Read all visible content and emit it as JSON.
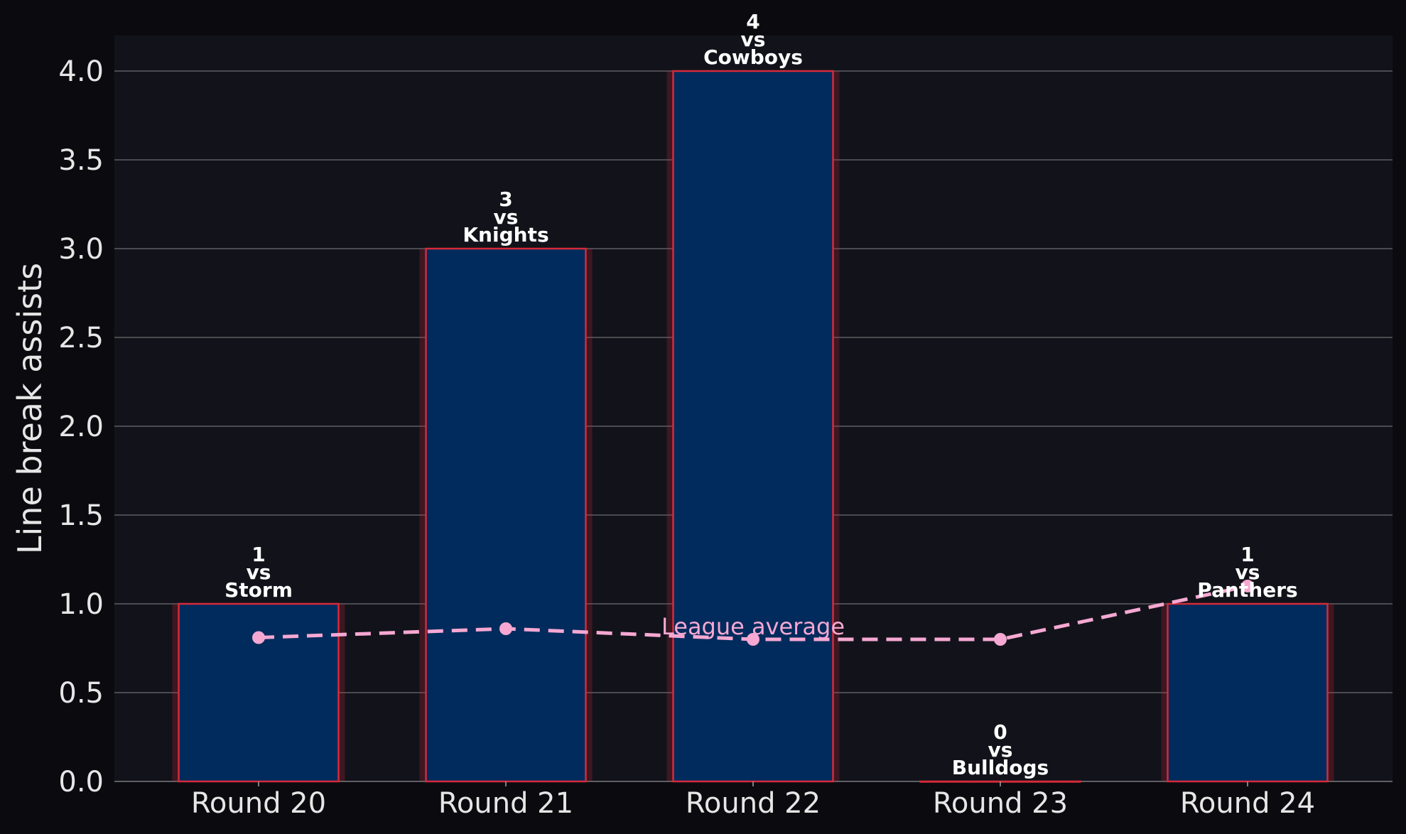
{
  "chart_data": {
    "type": "bar",
    "categories": [
      "Round 20",
      "Round 21",
      "Round 22",
      "Round 23",
      "Round 24"
    ],
    "values": [
      1,
      3,
      4,
      0,
      1
    ],
    "opponents": [
      "Storm",
      "Knights",
      "Cowboys",
      "Bulldogs",
      "Panthers"
    ],
    "vs_word": "vs",
    "ylabel": "Line break assists",
    "ylim": [
      0,
      4.2
    ],
    "yticks": [
      "0.0",
      "0.5",
      "1.0",
      "1.5",
      "2.0",
      "2.5",
      "3.0",
      "3.5",
      "4.0"
    ],
    "grid": true,
    "overlay_line": {
      "label": "League average",
      "values": [
        0.81,
        0.86,
        0.8,
        0.8,
        1.1
      ],
      "style": "dashed",
      "color": "#f6a8d2"
    },
    "colors": {
      "bar_fill": "#002b5c",
      "bar_edge": "#d62a3a",
      "background": "#0b0b0f",
      "plot_background": "#12131a",
      "grid": "#5c5c63",
      "text": "#e6e6e6"
    }
  }
}
